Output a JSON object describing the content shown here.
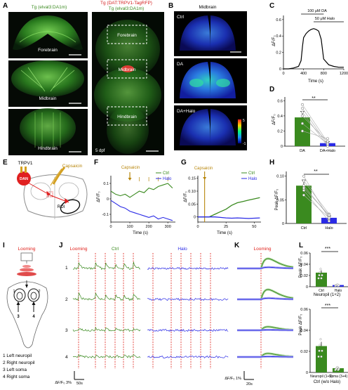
{
  "panels": {
    "A": {
      "letter": "A",
      "left_title": "Tg (elval3:DA1m)",
      "right_title_top": "Tg (DAT:TRPV1-TagRFP)",
      "right_title_bottom": "Tg (elval3:DA1m)",
      "tiles": [
        "Forebrain",
        "Midbrain",
        "Hindbrain"
      ],
      "box_labels": [
        "Forebrain",
        "Midbrain",
        "Hindbrain"
      ],
      "age": "5 dpf"
    },
    "B": {
      "letter": "B",
      "title": "Midbrain",
      "conditions": [
        "Ctrl",
        "DA",
        "DA+Halo"
      ],
      "colorbar_max": "5",
      "colorbar_min": "-1"
    },
    "C": {
      "letter": "C",
      "treat1": "100 μM DA",
      "treat2": "50 μM Halo",
      "ylabel": "ΔF/F₀",
      "xlabel": "Time (s)",
      "yticks": [
        "0",
        "0.2",
        "0.4",
        "0.6"
      ],
      "xticks": [
        "0",
        "400",
        "800",
        "1200"
      ]
    },
    "D": {
      "letter": "D",
      "ylabel": "ΔF/F₀",
      "yticks": [
        "0",
        "0.2",
        "0.4",
        "0.6"
      ],
      "sig": "**",
      "categories": [
        "DA",
        "DA+Halo"
      ]
    },
    "E": {
      "letter": "E",
      "trpv1": "TRPV1",
      "dan": "DAN",
      "capsaicin": "Capsaicin",
      "roi": "ROI"
    },
    "F": {
      "letter": "F",
      "capsaicin": "Capsaicin",
      "ylabel": "ΔF/F₀",
      "xlabel": "Time (s)",
      "yticks": [
        "-0.1",
        "0",
        "0.1"
      ],
      "xticks": [
        "0",
        "100",
        "200",
        "300"
      ],
      "legend": [
        "Ctrl",
        "Halo"
      ]
    },
    "G": {
      "letter": "G",
      "capsaicin": "Capsaicin",
      "ylabel": "ΔF/F₀",
      "xlabel": "Time (s)",
      "yticks": [
        "0",
        "0.05",
        "0.10",
        "0.15"
      ],
      "xticks": [
        "0",
        "25",
        "50"
      ],
      "legend": [
        "Ctrl",
        "Halo"
      ]
    },
    "H": {
      "letter": "H",
      "ylabel": "Peak ΔF/F₀",
      "yticks": [
        "0",
        "0.05",
        "0.10"
      ],
      "sig": "**",
      "categories": [
        "Ctrl",
        "Halo"
      ]
    },
    "I": {
      "letter": "I",
      "looming": "Looming",
      "roi_numbers": [
        "1",
        "2",
        "3",
        "4"
      ],
      "legend": [
        "1 Left neuropil",
        "2 Right neuropil",
        "3 Left soma",
        "4 Right soma"
      ]
    },
    "J": {
      "letter": "J",
      "looming": "Looming",
      "ctrl": "Ctrl",
      "halo": "Halo",
      "rows": [
        "1",
        "2",
        "3",
        "4"
      ],
      "scale_y": "ΔF/F₀ 3%",
      "scale_x": "50s"
    },
    "K": {
      "letter": "K",
      "looming": "Looming",
      "scale_y": "ΔF/F₀ 1%",
      "scale_x": "20s"
    },
    "L": {
      "letter": "L",
      "ylabel": "Peak ΔF/F₀",
      "yticks": [
        "0",
        "0.02",
        "0.04",
        "0.06"
      ],
      "sig": "***",
      "top_categories": [
        "Ctrl",
        "Halo"
      ],
      "top_caption": "Neuropil (1+2)",
      "bottom_categories": [
        "Neuropil (1+2)",
        "Soma (3+4)"
      ],
      "bottom_caption": "Ctrl (w/o Halo)"
    }
  },
  "colors": {
    "ctrl": "#3a8a1f",
    "halo": "#2a2ae6",
    "looming": "#e0201a",
    "capsaicin": "#b8860b",
    "dan": "#e02020"
  },
  "chart_data": [
    {
      "panel": "C",
      "type": "line",
      "x": [
        0,
        100,
        200,
        300,
        350,
        380,
        400,
        450,
        500,
        550,
        600,
        650,
        700,
        750,
        800,
        900,
        1000,
        1100,
        1200
      ],
      "y": [
        0.0,
        0.0,
        0.01,
        0.03,
        0.1,
        0.28,
        0.38,
        0.43,
        0.46,
        0.48,
        0.49,
        0.48,
        0.46,
        0.36,
        0.12,
        0.05,
        0.03,
        0.02,
        0.02
      ],
      "xlim": [
        0,
        1200
      ],
      "ylim": [
        0,
        0.65
      ]
    },
    {
      "panel": "D",
      "type": "bar",
      "categories": [
        "DA",
        "DA+Halo"
      ],
      "values": [
        0.38,
        0.04
      ],
      "errors": [
        0.08,
        0.02
      ],
      "paired": [
        [
          0.55,
          0.05
        ],
        [
          0.5,
          0.02
        ],
        [
          0.4,
          0.06
        ],
        [
          0.3,
          0.03
        ],
        [
          0.2,
          0.1
        ],
        [
          0.45,
          0.0
        ]
      ],
      "ylim": [
        0,
        0.65
      ]
    },
    {
      "panel": "F",
      "type": "line",
      "x": [
        0,
        25,
        50,
        75,
        100,
        125,
        150,
        175,
        200,
        225,
        250,
        275,
        300,
        325
      ],
      "series": [
        {
          "name": "Ctrl",
          "values": [
            0.05,
            0.03,
            0.02,
            0.03,
            0.01,
            0.03,
            0.05,
            0.04,
            0.07,
            0.06,
            0.08,
            0.09,
            0.1,
            0.07
          ]
        },
        {
          "name": "Halo",
          "values": [
            -0.01,
            -0.03,
            -0.05,
            -0.06,
            -0.08,
            -0.09,
            -0.1,
            -0.11,
            -0.12,
            -0.11,
            -0.13,
            -0.12,
            -0.13,
            -0.14
          ]
        }
      ],
      "xlim": [
        0,
        340
      ],
      "ylim": [
        -0.15,
        0.15
      ]
    },
    {
      "panel": "G",
      "type": "line",
      "x": [
        0,
        5,
        10,
        15,
        20,
        25,
        30,
        35,
        40,
        45,
        50,
        55
      ],
      "series": [
        {
          "name": "Ctrl",
          "values": [
            0.0,
            0.0,
            0.0,
            0.01,
            0.02,
            0.03,
            0.045,
            0.055,
            0.06,
            0.065,
            0.07,
            0.075
          ]
        },
        {
          "name": "Halo",
          "values": [
            0.0,
            0.0,
            0.0,
            0.0,
            -0.002,
            -0.004,
            -0.005,
            -0.004,
            -0.005,
            -0.006,
            -0.005,
            -0.004
          ]
        }
      ],
      "xlim": [
        0,
        56
      ],
      "ylim": [
        -0.02,
        0.16
      ]
    },
    {
      "panel": "H",
      "type": "bar",
      "categories": [
        "Ctrl",
        "Halo"
      ],
      "values": [
        0.08,
        0.012
      ],
      "errors": [
        0.012,
        0.004
      ],
      "paired": [
        [
          0.1,
          0.01
        ],
        [
          0.09,
          0.02
        ],
        [
          0.08,
          0.015
        ],
        [
          0.07,
          0.005
        ],
        [
          0.06,
          0.012
        ],
        [
          0.075,
          0.018
        ]
      ],
      "ylim": [
        0,
        0.11
      ]
    },
    {
      "panel": "L-top",
      "type": "bar",
      "categories": [
        "Ctrl",
        "Halo"
      ],
      "values": [
        0.025,
        0.003
      ],
      "errors": [
        0.004,
        0.001
      ],
      "ylim": [
        0,
        0.06
      ]
    },
    {
      "panel": "L-bottom",
      "type": "bar",
      "categories": [
        "Neuropil (1+2)",
        "Soma (3+4)"
      ],
      "values": [
        0.025,
        0.004
      ],
      "errors": [
        0.004,
        0.001
      ],
      "ylim": [
        0,
        0.06
      ]
    }
  ]
}
